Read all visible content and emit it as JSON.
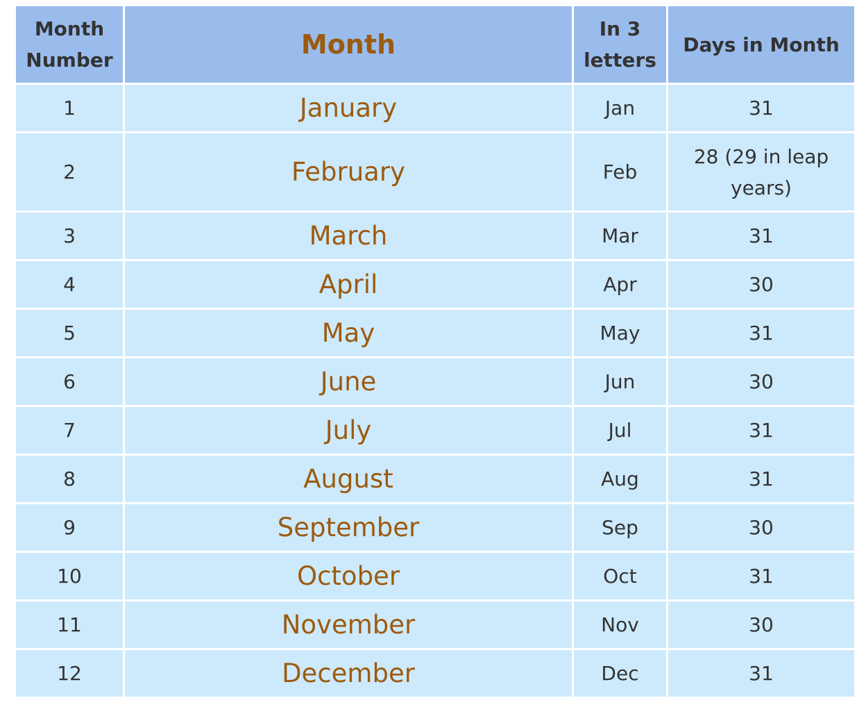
{
  "headers": {
    "month_number": "Month Number",
    "month": "Month",
    "in_3_letters": "In 3 letters",
    "days_in_month": "Days in Month"
  },
  "rows": [
    {
      "number": "1",
      "month": "January",
      "abbr": "Jan",
      "days": "31"
    },
    {
      "number": "2",
      "month": "February",
      "abbr": "Feb",
      "days": "28 (29 in leap years)"
    },
    {
      "number": "3",
      "month": "March",
      "abbr": "Mar",
      "days": "31"
    },
    {
      "number": "4",
      "month": "April",
      "abbr": "Apr",
      "days": "30"
    },
    {
      "number": "5",
      "month": "May",
      "abbr": "May",
      "days": "31"
    },
    {
      "number": "6",
      "month": "June",
      "abbr": "Jun",
      "days": "30"
    },
    {
      "number": "7",
      "month": "July",
      "abbr": "Jul",
      "days": "31"
    },
    {
      "number": "8",
      "month": "August",
      "abbr": "Aug",
      "days": "31"
    },
    {
      "number": "9",
      "month": "September",
      "abbr": "Sep",
      "days": "30"
    },
    {
      "number": "10",
      "month": "October",
      "abbr": "Oct",
      "days": "31"
    },
    {
      "number": "11",
      "month": "November",
      "abbr": "Nov",
      "days": "30"
    },
    {
      "number": "12",
      "month": "December",
      "abbr": "Dec",
      "days": "31"
    }
  ],
  "colors": {
    "header_bg": "#9abcec",
    "cell_bg": "#cdeafc",
    "month_text": "#9c5b10",
    "body_text": "#333333"
  }
}
